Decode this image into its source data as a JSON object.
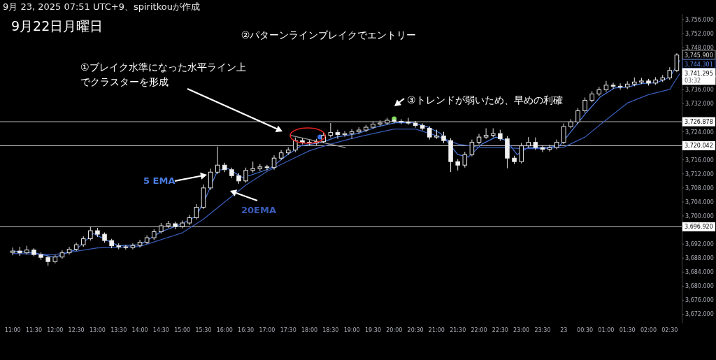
{
  "chart_data": {
    "type": "candlestick",
    "title": "9月22日月曜日",
    "annotations": [
      "9月 23, 2025 07:51 UTC+9、spiritkouが作成",
      "②パターンラインブレイクでエントリー",
      "①ブレイク水準になった水平ライン上でクラスターを形成",
      "③トレンドが弱いため、早めの利確",
      "3,745.900",
      "3,744.301",
      "3,741.295",
      "03:32"
    ],
    "x": [
      "2025-09-22T11:00",
      "2025-09-22T11:10",
      "2025-09-22T11:20",
      "2025-09-22T11:30",
      "2025-09-22T11:40",
      "2025-09-22T11:50",
      "2025-09-22T12:00",
      "2025-09-22T12:10",
      "2025-09-22T12:20",
      "2025-09-22T12:30",
      "2025-09-22T12:40",
      "2025-09-22T12:50",
      "2025-09-22T13:00",
      "2025-09-22T13:10",
      "2025-09-22T13:20",
      "2025-09-22T13:30",
      "2025-09-22T13:40",
      "2025-09-22T13:50",
      "2025-09-22T14:00",
      "2025-09-22T14:10",
      "2025-09-22T14:20",
      "2025-09-22T14:30",
      "2025-09-22T14:40",
      "2025-09-22T14:50",
      "2025-09-22T15:00",
      "2025-09-22T15:10",
      "2025-09-22T15:20",
      "2025-09-22T15:30",
      "2025-09-22T15:40",
      "2025-09-22T15:50",
      "2025-09-22T16:00",
      "2025-09-22T16:10",
      "2025-09-22T16:20",
      "2025-09-22T16:30",
      "2025-09-22T16:40",
      "2025-09-22T16:50",
      "2025-09-22T17:00",
      "2025-09-22T17:10",
      "2025-09-22T17:20",
      "2025-09-22T17:30",
      "2025-09-22T17:40",
      "2025-09-22T17:50",
      "2025-09-22T18:00",
      "2025-09-22T18:10",
      "2025-09-22T18:20",
      "2025-09-22T18:30",
      "2025-09-22T18:40",
      "2025-09-22T18:50",
      "2025-09-22T19:00",
      "2025-09-22T19:10",
      "2025-09-22T19:20",
      "2025-09-22T19:30",
      "2025-09-22T19:40",
      "2025-09-22T19:50",
      "2025-09-22T20:00",
      "2025-09-22T20:10",
      "2025-09-22T20:20",
      "2025-09-22T20:30",
      "2025-09-22T20:40",
      "2025-09-22T20:50",
      "2025-09-22T21:00",
      "2025-09-22T21:10",
      "2025-09-22T21:20",
      "2025-09-22T21:30",
      "2025-09-22T21:40",
      "2025-09-22T21:50",
      "2025-09-22T22:00",
      "2025-09-22T22:10",
      "2025-09-22T22:20",
      "2025-09-22T22:30",
      "2025-09-22T22:40",
      "2025-09-22T22:50",
      "2025-09-22T23:00",
      "2025-09-22T23:10",
      "2025-09-22T23:20",
      "2025-09-22T23:30",
      "2025-09-22T23:40",
      "2025-09-22T23:50",
      "2025-09-23T00:00",
      "2025-09-23T00:10",
      "2025-09-23T00:20",
      "2025-09-23T00:30",
      "2025-09-23T00:40",
      "2025-09-23T00:50",
      "2025-09-23T01:00",
      "2025-09-23T01:10",
      "2025-09-23T01:20",
      "2025-09-23T01:30",
      "2025-09-23T01:40",
      "2025-09-23T01:50",
      "2025-09-23T02:00",
      "2025-09-23T02:10",
      "2025-09-23T02:20",
      "2025-09-23T02:30",
      "2025-09-23T02:40"
    ],
    "ohlc": [
      [
        3689.6,
        3691.0,
        3688.8,
        3690.0
      ],
      [
        3690.0,
        3691.2,
        3688.6,
        3689.5
      ],
      [
        3689.5,
        3691.5,
        3689.0,
        3690.3
      ],
      [
        3690.3,
        3690.8,
        3688.5,
        3689.0
      ],
      [
        3689.0,
        3689.6,
        3687.5,
        3688.2
      ],
      [
        3688.2,
        3688.6,
        3685.8,
        3687.0
      ],
      [
        3687.0,
        3688.9,
        3686.5,
        3688.3
      ],
      [
        3688.3,
        3690.2,
        3687.8,
        3689.5
      ],
      [
        3689.5,
        3691.2,
        3689.0,
        3690.5
      ],
      [
        3690.5,
        3692.4,
        3690.0,
        3691.8
      ],
      [
        3691.8,
        3694.2,
        3691.2,
        3693.5
      ],
      [
        3693.5,
        3697.0,
        3693.0,
        3695.8
      ],
      [
        3695.8,
        3696.6,
        3694.0,
        3694.8
      ],
      [
        3694.8,
        3695.3,
        3692.4,
        3693.0
      ],
      [
        3693.0,
        3693.5,
        3690.8,
        3691.5
      ],
      [
        3691.5,
        3692.2,
        3690.5,
        3691.2
      ],
      [
        3691.2,
        3691.8,
        3690.4,
        3691.0
      ],
      [
        3691.0,
        3692.2,
        3690.5,
        3691.6
      ],
      [
        3691.6,
        3693.2,
        3691.0,
        3692.5
      ],
      [
        3692.5,
        3694.5,
        3692.0,
        3693.8
      ],
      [
        3693.8,
        3696.2,
        3693.2,
        3695.5
      ],
      [
        3695.5,
        3698.0,
        3695.0,
        3697.2
      ],
      [
        3697.2,
        3698.6,
        3696.6,
        3697.8
      ],
      [
        3697.8,
        3698.4,
        3696.2,
        3697.0
      ],
      [
        3697.0,
        3698.7,
        3696.5,
        3698.0
      ],
      [
        3698.0,
        3700.3,
        3697.4,
        3699.5
      ],
      [
        3699.5,
        3703.4,
        3699.0,
        3702.5
      ],
      [
        3702.5,
        3709.0,
        3702.0,
        3708.0
      ],
      [
        3708.0,
        3713.5,
        3707.4,
        3712.5
      ],
      [
        3712.5,
        3719.8,
        3712.0,
        3714.5
      ],
      [
        3714.5,
        3715.2,
        3712.5,
        3713.2
      ],
      [
        3713.2,
        3713.8,
        3710.8,
        3711.5
      ],
      [
        3711.5,
        3712.2,
        3709.2,
        3710.0
      ],
      [
        3710.0,
        3713.8,
        3709.5,
        3713.0
      ],
      [
        3713.0,
        3715.5,
        3712.4,
        3713.5
      ],
      [
        3713.5,
        3714.8,
        3712.8,
        3714.0
      ],
      [
        3714.0,
        3714.6,
        3713.0,
        3713.8
      ],
      [
        3713.8,
        3717.3,
        3713.2,
        3716.5
      ],
      [
        3716.5,
        3718.8,
        3716.0,
        3718.0
      ],
      [
        3718.0,
        3719.6,
        3717.4,
        3718.8
      ],
      [
        3718.8,
        3722.4,
        3718.2,
        3721.5
      ],
      [
        3721.5,
        3722.2,
        3720.4,
        3721.0
      ],
      [
        3721.0,
        3721.6,
        3720.2,
        3720.8
      ],
      [
        3720.8,
        3722.0,
        3720.2,
        3721.2
      ],
      [
        3721.2,
        3723.8,
        3720.8,
        3723.0
      ],
      [
        3723.0,
        3726.5,
        3722.4,
        3723.8
      ],
      [
        3723.8,
        3724.6,
        3722.0,
        3723.2
      ],
      [
        3723.2,
        3724.2,
        3722.6,
        3723.5
      ],
      [
        3723.5,
        3724.8,
        3722.0,
        3724.0
      ],
      [
        3724.0,
        3725.3,
        3723.4,
        3724.5
      ],
      [
        3724.5,
        3726.0,
        3723.9,
        3725.3
      ],
      [
        3725.3,
        3727.0,
        3724.8,
        3726.2
      ],
      [
        3726.2,
        3727.3,
        3725.6,
        3726.5
      ],
      [
        3726.5,
        3728.0,
        3726.0,
        3727.3
      ],
      [
        3727.3,
        3727.8,
        3726.4,
        3727.0
      ],
      [
        3727.0,
        3727.6,
        3726.2,
        3726.8
      ],
      [
        3726.8,
        3728.0,
        3726.0,
        3726.5
      ],
      [
        3726.5,
        3727.1,
        3725.2,
        3725.8
      ],
      [
        3725.8,
        3726.4,
        3724.4,
        3725.0
      ],
      [
        3725.0,
        3725.6,
        3721.8,
        3722.5
      ],
      [
        3722.5,
        3724.6,
        3722.0,
        3722.8
      ],
      [
        3722.8,
        3724.0,
        3720.8,
        3721.5
      ],
      [
        3721.5,
        3722.2,
        3712.5,
        3715.5
      ],
      [
        3715.5,
        3716.2,
        3713.0,
        3714.5
      ],
      [
        3714.5,
        3718.3,
        3713.8,
        3717.5
      ],
      [
        3717.5,
        3721.8,
        3717.0,
        3721.0
      ],
      [
        3721.0,
        3723.4,
        3720.4,
        3722.5
      ],
      [
        3722.5,
        3725.0,
        3722.0,
        3723.0
      ],
      [
        3723.0,
        3725.0,
        3722.4,
        3723.5
      ],
      [
        3723.5,
        3724.6,
        3721.4,
        3722.0
      ],
      [
        3722.0,
        3722.8,
        3713.6,
        3716.5
      ],
      [
        3716.5,
        3717.2,
        3714.8,
        3715.5
      ],
      [
        3715.5,
        3720.8,
        3715.0,
        3720.0
      ],
      [
        3720.0,
        3722.5,
        3719.4,
        3721.0
      ],
      [
        3721.0,
        3722.4,
        3718.8,
        3719.5
      ],
      [
        3719.5,
        3720.2,
        3718.2,
        3719.0
      ],
      [
        3719.0,
        3720.3,
        3718.4,
        3719.5
      ],
      [
        3719.5,
        3721.8,
        3719.0,
        3721.0
      ],
      [
        3721.0,
        3726.4,
        3720.5,
        3725.5
      ],
      [
        3725.5,
        3727.6,
        3725.0,
        3726.8
      ],
      [
        3726.8,
        3730.8,
        3726.2,
        3730.0
      ],
      [
        3730.0,
        3733.8,
        3729.4,
        3733.0
      ],
      [
        3733.0,
        3735.6,
        3732.4,
        3734.8
      ],
      [
        3734.8,
        3736.8,
        3734.2,
        3736.0
      ],
      [
        3736.0,
        3738.5,
        3735.4,
        3737.3
      ],
      [
        3737.3,
        3738.0,
        3736.2,
        3737.0
      ],
      [
        3737.0,
        3737.8,
        3736.0,
        3736.8
      ],
      [
        3736.8,
        3738.4,
        3736.2,
        3737.6
      ],
      [
        3737.6,
        3739.5,
        3737.0,
        3738.2
      ],
      [
        3738.2,
        3739.4,
        3737.6,
        3738.5
      ],
      [
        3738.5,
        3739.1,
        3737.2,
        3737.9
      ],
      [
        3737.9,
        3739.6,
        3737.4,
        3738.8
      ],
      [
        3738.8,
        3740.2,
        3738.2,
        3739.4
      ],
      [
        3739.4,
        3742.4,
        3738.8,
        3741.5
      ],
      [
        3741.5,
        3746.4,
        3741.0,
        3745.9
      ]
    ],
    "series": [
      {
        "name": "5 EMA",
        "type": "line",
        "color": "#4a7ae0",
        "x": [
          "2025-09-22T11:00",
          "2025-09-22T11:30",
          "2025-09-22T12:00",
          "2025-09-22T12:30",
          "2025-09-22T12:54",
          "2025-09-22T13:09",
          "2025-09-22T13:30",
          "2025-09-22T14:00",
          "2025-09-22T14:30",
          "2025-09-22T15:00",
          "2025-09-22T15:20",
          "2025-09-22T15:35",
          "2025-09-22T15:50",
          "2025-09-22T16:05",
          "2025-09-22T16:25",
          "2025-09-22T16:35",
          "2025-09-22T17:04",
          "2025-09-22T17:29",
          "2025-09-22T17:48",
          "2025-09-22T18:18",
          "2025-09-22T18:38",
          "2025-09-22T19:08",
          "2025-09-22T19:37",
          "2025-09-22T20:02",
          "2025-09-22T20:26",
          "2025-09-22T20:46",
          "2025-09-22T21:06",
          "2025-09-22T21:30",
          "2025-09-22T21:45",
          "2025-09-22T22:04",
          "2025-09-22T22:24",
          "2025-09-22T22:39",
          "2025-09-22T22:54",
          "2025-09-22T23:09",
          "2025-09-22T23:34",
          "2025-09-22T23:54",
          "2025-09-23T00:08",
          "2025-09-23T00:32",
          "2025-09-23T00:52",
          "2025-09-23T01:12",
          "2025-09-23T01:31",
          "2025-09-23T01:51",
          "2025-09-23T02:11",
          "2025-09-23T02:30",
          "2025-09-23T02:44"
        ],
        "values": [
          3690,
          3689.5,
          3688.2,
          3690.5,
          3695,
          3693.5,
          3691.5,
          3691.8,
          3695.5,
          3697.8,
          3700,
          3706,
          3713,
          3713.5,
          3711,
          3711.5,
          3713.5,
          3717.5,
          3720,
          3721,
          3722.5,
          3723.5,
          3725.5,
          3726.6,
          3726.6,
          3725.5,
          3723.5,
          3717.5,
          3716.8,
          3720.5,
          3722.5,
          3721.5,
          3717.5,
          3719.5,
          3719.5,
          3720,
          3723.5,
          3729.5,
          3734,
          3736.5,
          3736.8,
          3737.8,
          3738,
          3739.5,
          3744.3
        ]
      },
      {
        "name": "20EMA",
        "type": "line",
        "color": "#3a5cb8",
        "x": [
          "2025-09-22T11:00",
          "2025-09-22T12:00",
          "2025-09-22T13:00",
          "2025-09-22T14:00",
          "2025-09-22T15:00",
          "2025-09-22T15:30",
          "2025-09-22T16:00",
          "2025-09-22T16:30",
          "2025-09-22T17:00",
          "2025-09-22T17:30",
          "2025-09-22T18:00",
          "2025-09-22T18:30",
          "2025-09-22T19:00",
          "2025-09-22T19:30",
          "2025-09-22T20:00",
          "2025-09-22T20:30",
          "2025-09-22T21:00",
          "2025-09-22T21:30",
          "2025-09-22T22:00",
          "2025-09-22T22:30",
          "2025-09-22T23:00",
          "2025-09-22T23:30",
          "2025-09-23T00:00",
          "2025-09-23T00:30",
          "2025-09-23T01:00",
          "2025-09-23T01:30",
          "2025-09-23T02:00",
          "2025-09-23T02:30",
          "2025-09-23T02:44"
        ],
        "values": [
          3689.3,
          3689.0,
          3690.9,
          3691.3,
          3695.2,
          3699.1,
          3704,
          3708.8,
          3712.7,
          3715.7,
          3718.6,
          3720.5,
          3722.1,
          3723.5,
          3724.8,
          3724.8,
          3722.9,
          3720.5,
          3719.6,
          3719.6,
          3719.2,
          3719.2,
          3719.6,
          3722.5,
          3727.4,
          3732.2,
          3734.6,
          3736.1,
          3740.5
        ]
      },
      {
        "type": "line",
        "color": "#9e9e9e",
        "x": [
          "2025-09-22T17:33",
          "2025-09-22T18:51"
        ],
        "values": [
          3723.0,
          3719.5
        ]
      },
      {
        "type": "scatter",
        "color": "#3b6ef0",
        "x": [
          "2025-09-22T18:15"
        ],
        "values": [
          3722.5
        ]
      },
      {
        "type": "scatter",
        "color": "#7ed957",
        "x": [
          "2025-09-22T20:00"
        ],
        "values": [
          3727.7
        ]
      }
    ],
    "ref_lines": [
      {
        "axis": "y",
        "value": 3726.878,
        "label": "3,726.878",
        "color": "#c8c8c8"
      },
      {
        "axis": "y",
        "value": 3720.042,
        "label": "3,720.042",
        "color": "#c8c8c8"
      },
      {
        "axis": "y",
        "value": 3696.92,
        "label": "3,696.920",
        "color": "#c8c8c8"
      }
    ],
    "xlim": [
      "2025-09-22T10:42",
      "2025-09-23T02:47"
    ],
    "ylim": [
      3669.5,
      3757.6
    ],
    "xticks": [
      {
        "value": "2025-09-22T11:00",
        "label": "11:00"
      },
      {
        "value": "2025-09-22T11:30",
        "label": "11:30"
      },
      {
        "value": "2025-09-22T12:00",
        "label": "12:00"
      },
      {
        "value": "2025-09-22T12:30",
        "label": "12:30"
      },
      {
        "value": "2025-09-22T13:00",
        "label": "13:00"
      },
      {
        "value": "2025-09-22T13:30",
        "label": "13:30"
      },
      {
        "value": "2025-09-22T14:00",
        "label": "14:00"
      },
      {
        "value": "2025-09-22T14:30",
        "label": "14:30"
      },
      {
        "value": "2025-09-22T15:00",
        "label": "15:00"
      },
      {
        "value": "2025-09-22T15:30",
        "label": "15:30"
      },
      {
        "value": "2025-09-22T16:00",
        "label": "16:00"
      },
      {
        "value": "2025-09-22T16:30",
        "label": "16:30"
      },
      {
        "value": "2025-09-22T17:00",
        "label": "17:00"
      },
      {
        "value": "2025-09-22T17:30",
        "label": "17:30"
      },
      {
        "value": "2025-09-22T18:00",
        "label": "18:00"
      },
      {
        "value": "2025-09-22T18:30",
        "label": "18:30"
      },
      {
        "value": "2025-09-22T19:00",
        "label": "19:00"
      },
      {
        "value": "2025-09-22T19:30",
        "label": "19:30"
      },
      {
        "value": "2025-09-22T20:00",
        "label": "20:00"
      },
      {
        "value": "2025-09-22T20:30",
        "label": "20:30"
      },
      {
        "value": "2025-09-22T21:00",
        "label": "21:00"
      },
      {
        "value": "2025-09-22T21:30",
        "label": "21:30"
      },
      {
        "value": "2025-09-22T22:00",
        "label": "22:00"
      },
      {
        "value": "2025-09-22T22:30",
        "label": "22:30"
      },
      {
        "value": "2025-09-22T23:00",
        "label": "23:00"
      },
      {
        "value": "2025-09-22T23:30",
        "label": "23:30"
      },
      {
        "value": "2025-09-23",
        "label": "23"
      },
      {
        "value": "2025-09-23T00:30",
        "label": "00:30"
      },
      {
        "value": "2025-09-23T01:00",
        "label": "01:00"
      },
      {
        "value": "2025-09-23T01:30",
        "label": "01:30"
      },
      {
        "value": "2025-09-23T02:00",
        "label": "02:00"
      },
      {
        "value": "2025-09-23T02:30",
        "label": "02:30"
      }
    ],
    "yticks": [
      {
        "value": 3672,
        "label": "3,672.000"
      },
      {
        "value": 3676,
        "label": "3,676.000"
      },
      {
        "value": 3680,
        "label": "3,680.000"
      },
      {
        "value": 3684,
        "label": "3,684.000"
      },
      {
        "value": 3688,
        "label": "3,688.000"
      },
      {
        "value": 3692,
        "label": "3,692.000"
      },
      {
        "value": 3696,
        "label": null
      },
      {
        "value": 3700,
        "label": "3,700.000"
      },
      {
        "value": 3704,
        "label": "3,704.000"
      },
      {
        "value": 3708,
        "label": "3,708.000"
      },
      {
        "value": 3712,
        "label": "3,712.000"
      },
      {
        "value": 3716,
        "label": "3,716.000"
      },
      {
        "value": 3720,
        "label": null
      },
      {
        "value": 3724,
        "label": "3,724.000"
      },
      {
        "value": 3728,
        "label": null
      },
      {
        "value": 3732,
        "label": "3,732.000"
      },
      {
        "value": 3736,
        "label": "3,736.000"
      },
      {
        "value": 3740,
        "label": null
      },
      {
        "value": 3744,
        "label": null
      },
      {
        "value": 3748,
        "label": "3,748.000"
      },
      {
        "value": 3752,
        "label": "3,752.000"
      },
      {
        "value": 3756,
        "label": "3,756.000"
      }
    ]
  }
}
